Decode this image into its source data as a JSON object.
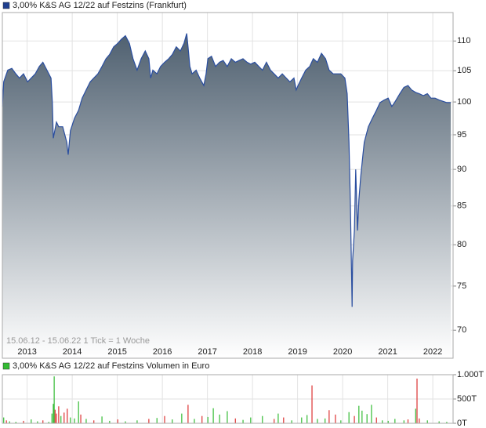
{
  "chart_data": [
    {
      "type": "area",
      "title": "3,00% K&S AG 12/22 auf Festzins (Frankfurt)",
      "annotation": "15.06.12 - 15.06.22   1 Tick = 1 Woche",
      "color": "#2a4ea0",
      "legend_color": "#1f3f8f",
      "gradient": [
        "#4f6070",
        "#ffffff"
      ],
      "log": true,
      "grid": true,
      "xlim": [
        2012.45,
        2022.45
      ],
      "xticks": [
        2013,
        2014,
        2015,
        2016,
        2017,
        2018,
        2019,
        2020,
        2021,
        2022
      ],
      "ylim": [
        67,
        115
      ],
      "yticks": [
        70,
        75,
        80,
        85,
        90,
        95,
        100,
        105,
        110
      ],
      "x": [
        2012.45,
        2012.48,
        2012.57,
        2012.66,
        2012.75,
        2012.83,
        2012.92,
        2013.01,
        2013.09,
        2013.18,
        2013.27,
        2013.35,
        2013.44,
        2013.53,
        2013.56,
        2013.58,
        2013.65,
        2013.7,
        2013.79,
        2013.88,
        2013.91,
        2013.96,
        2014.05,
        2014.14,
        2014.22,
        2014.31,
        2014.4,
        2014.48,
        2014.57,
        2014.66,
        2014.75,
        2014.83,
        2014.92,
        2015.01,
        2015.09,
        2015.18,
        2015.27,
        2015.35,
        2015.44,
        2015.53,
        2015.62,
        2015.7,
        2015.74,
        2015.79,
        2015.88,
        2015.96,
        2016.05,
        2016.14,
        2016.22,
        2016.31,
        2016.4,
        2016.48,
        2016.54,
        2016.57,
        2016.61,
        2016.66,
        2016.75,
        2016.83,
        2016.92,
        2016.97,
        2017.01,
        2017.09,
        2017.18,
        2017.27,
        2017.35,
        2017.44,
        2017.53,
        2017.62,
        2017.7,
        2017.79,
        2017.88,
        2017.96,
        2018.05,
        2018.14,
        2018.22,
        2018.31,
        2018.4,
        2018.48,
        2018.57,
        2018.66,
        2018.75,
        2018.83,
        2018.92,
        2018.97,
        2019.01,
        2019.09,
        2019.18,
        2019.27,
        2019.35,
        2019.44,
        2019.53,
        2019.62,
        2019.7,
        2019.79,
        2019.88,
        2019.96,
        2020.05,
        2020.1,
        2020.14,
        2020.17,
        2020.21,
        2020.22,
        2020.26,
        2020.29,
        2020.33,
        2020.36,
        2020.4,
        2020.45,
        2020.48,
        2020.57,
        2020.66,
        2020.75,
        2020.83,
        2020.92,
        2021.01,
        2021.09,
        2021.15,
        2021.27,
        2021.36,
        2021.45,
        2021.53,
        2021.62,
        2021.7,
        2021.79,
        2021.88,
        2021.96,
        2022.05,
        2022.14,
        2022.23,
        2022.31,
        2022.4
      ],
      "values": [
        99.3,
        103.2,
        105.1,
        105.4,
        104.5,
        103.8,
        104.5,
        103.2,
        103.8,
        104.5,
        105.7,
        106.4,
        105.1,
        103.8,
        99.9,
        94.5,
        96.9,
        96.2,
        96.2,
        93.9,
        92.1,
        95.6,
        97.5,
        98.7,
        100.6,
        101.9,
        103.2,
        103.8,
        104.5,
        105.7,
        107.0,
        107.7,
        109.0,
        109.6,
        110.3,
        110.9,
        109.6,
        107.0,
        105.1,
        107.0,
        108.3,
        107.0,
        103.8,
        105.1,
        104.5,
        105.7,
        106.4,
        107.0,
        107.7,
        109.0,
        108.3,
        109.6,
        111.3,
        109.0,
        105.7,
        104.5,
        105.1,
        103.8,
        102.6,
        104.5,
        107.0,
        107.4,
        105.7,
        106.4,
        106.7,
        105.7,
        107.0,
        106.4,
        106.7,
        107.0,
        106.4,
        106.1,
        106.4,
        105.7,
        105.1,
        106.4,
        105.1,
        104.5,
        103.8,
        104.5,
        103.8,
        103.2,
        103.8,
        101.9,
        102.6,
        103.8,
        105.1,
        105.7,
        107.0,
        106.4,
        107.9,
        107.0,
        105.1,
        104.5,
        104.5,
        104.5,
        103.8,
        101.3,
        93.9,
        85.8,
        72.6,
        78.0,
        81.8,
        90.0,
        81.8,
        85.8,
        88.9,
        92.1,
        93.9,
        96.2,
        97.5,
        98.7,
        99.9,
        100.3,
        100.6,
        99.3,
        99.9,
        101.3,
        102.3,
        102.6,
        101.9,
        101.5,
        101.3,
        101.0,
        101.3,
        100.6,
        100.6,
        100.3,
        100.1,
        99.9,
        99.9
      ]
    },
    {
      "type": "bar",
      "title": "3,00% K&S AG 12/22 auf Festzins Volumen in Euro",
      "legend_color": "#33bb33",
      "grid": true,
      "xlim": [
        2012.45,
        2022.45
      ],
      "ylim": [
        0,
        1000
      ],
      "yticks": [
        {
          "value": 0,
          "label": "0T"
        },
        {
          "value": 500,
          "label": "500T"
        },
        {
          "value": 1000,
          "label": "1.000T"
        }
      ],
      "x": [
        2012.48,
        2012.54,
        2012.61,
        2012.75,
        2012.92,
        2013.09,
        2013.23,
        2013.35,
        2013.48,
        2013.55,
        2013.58,
        2013.6,
        2013.62,
        2013.65,
        2013.7,
        2013.75,
        2013.82,
        2013.89,
        2013.96,
        2014.05,
        2014.14,
        2014.19,
        2014.31,
        2014.48,
        2014.66,
        2014.83,
        2015.01,
        2015.18,
        2015.44,
        2015.7,
        2015.88,
        2016.05,
        2016.22,
        2016.43,
        2016.57,
        2016.71,
        2016.88,
        2017.01,
        2017.13,
        2017.27,
        2017.44,
        2017.62,
        2017.79,
        2017.96,
        2018.22,
        2018.48,
        2018.57,
        2018.69,
        2018.87,
        2019.09,
        2019.21,
        2019.32,
        2019.44,
        2019.61,
        2019.7,
        2019.84,
        2019.96,
        2020.14,
        2020.26,
        2020.36,
        2020.43,
        2020.54,
        2020.64,
        2020.75,
        2020.88,
        2021.01,
        2021.16,
        2021.36,
        2021.45,
        2021.62,
        2021.65,
        2021.7,
        2021.88,
        2022.14,
        2022.31
      ],
      "values": [
        120,
        60,
        40,
        30,
        50,
        80,
        40,
        60,
        30,
        200,
        400,
        965,
        280,
        200,
        350,
        150,
        220,
        300,
        120,
        100,
        450,
        180,
        90,
        60,
        140,
        50,
        80,
        40,
        60,
        90,
        110,
        150,
        80,
        200,
        380,
        90,
        150,
        130,
        310,
        180,
        250,
        100,
        70,
        120,
        150,
        90,
        200,
        120,
        60,
        120,
        170,
        780,
        90,
        100,
        270,
        180,
        60,
        230,
        150,
        360,
        260,
        190,
        380,
        120,
        60,
        50,
        90,
        60,
        80,
        300,
        920,
        100,
        60,
        40,
        30
      ],
      "colors": [
        "#33bb33",
        "#dd3333",
        "#33bb33",
        "#33bb33",
        "#dd3333",
        "#33bb33",
        "#33bb33",
        "#dd3333",
        "#33bb33",
        "#33bb33",
        "#33bb33",
        "#33bb33",
        "#dd3333",
        "#dd3333",
        "#dd3333",
        "#33bb33",
        "#dd3333",
        "#dd3333",
        "#33bb33",
        "#33bb33",
        "#33bb33",
        "#dd3333",
        "#33bb33",
        "#dd3333",
        "#33bb33",
        "#33bb33",
        "#dd3333",
        "#33bb33",
        "#33bb33",
        "#dd3333",
        "#33bb33",
        "#dd3333",
        "#33bb33",
        "#33bb33",
        "#dd3333",
        "#33bb33",
        "#dd3333",
        "#33bb33",
        "#33bb33",
        "#33bb33",
        "#33bb33",
        "#dd3333",
        "#33bb33",
        "#33bb33",
        "#33bb33",
        "#dd3333",
        "#33bb33",
        "#dd3333",
        "#33bb33",
        "#33bb33",
        "#33bb33",
        "#dd3333",
        "#33bb33",
        "#33bb33",
        "#dd3333",
        "#dd3333",
        "#33bb33",
        "#33bb33",
        "#dd3333",
        "#33bb33",
        "#33bb33",
        "#33bb33",
        "#33bb33",
        "#dd3333",
        "#33bb33",
        "#33bb33",
        "#33bb33",
        "#33bb33",
        "#dd3333",
        "#33bb33",
        "#dd3333",
        "#dd3333",
        "#33bb33",
        "#33bb33",
        "#33bb33"
      ]
    }
  ]
}
